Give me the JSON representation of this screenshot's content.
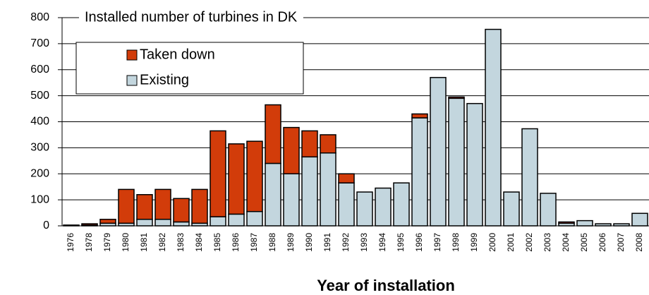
{
  "chart_data": {
    "type": "stacked_bar",
    "title": "Installed number of turbines in DK",
    "x_label": "Year of installation",
    "categories": [
      "1976",
      "1978",
      "1979",
      "1980",
      "1981",
      "1982",
      "1983",
      "1984",
      "1985",
      "1986",
      "1987",
      "1988",
      "1989",
      "1990",
      "1991",
      "1992",
      "1993",
      "1994",
      "1995",
      "1996",
      "1997",
      "1998",
      "1999",
      "2000",
      "2001",
      "2002",
      "2003",
      "2004",
      "2005",
      "2006",
      "2007",
      "2008"
    ],
    "series": [
      {
        "name": "Existing",
        "color": "#c3d6de",
        "values": [
          0,
          3,
          10,
          10,
          25,
          25,
          15,
          10,
          35,
          45,
          55,
          240,
          200,
          265,
          280,
          165,
          130,
          145,
          165,
          415,
          570,
          490,
          470,
          755,
          130,
          373,
          125,
          10,
          20,
          8,
          8,
          48
        ]
      },
      {
        "name": "Taken down",
        "color": "#d23c0a",
        "values": [
          3,
          5,
          15,
          130,
          95,
          115,
          90,
          130,
          330,
          270,
          270,
          225,
          178,
          100,
          70,
          35,
          0,
          0,
          0,
          15,
          0,
          5,
          0,
          0,
          0,
          0,
          0,
          5,
          0,
          0,
          0,
          0
        ]
      }
    ],
    "ylim": [
      0,
      800
    ],
    "yticks": [
      0,
      100,
      200,
      300,
      400,
      500,
      600,
      700,
      800
    ],
    "grid": true
  }
}
